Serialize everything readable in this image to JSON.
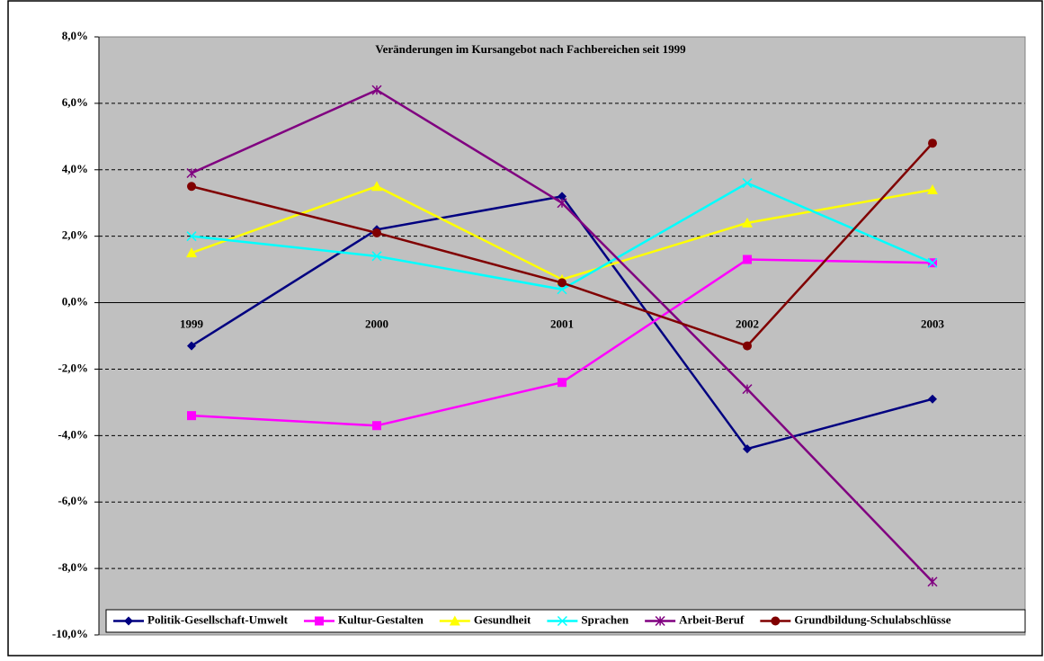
{
  "chart_data": {
    "type": "line",
    "title": "Veränderungen im Kursangebot nach Fachbereichen seit 1999",
    "categories": [
      "1999",
      "2000",
      "2001",
      "2002",
      "2003"
    ],
    "series": [
      {
        "name": "Politik-Gesellschaft-Umwelt",
        "color": "#000080",
        "marker": "diamond",
        "values": [
          -1.3,
          2.2,
          3.2,
          -4.4,
          -2.9
        ]
      },
      {
        "name": "Kultur-Gestalten",
        "color": "#ff00ff",
        "marker": "square",
        "values": [
          -3.4,
          -3.7,
          -2.4,
          1.3,
          1.2
        ]
      },
      {
        "name": "Gesundheit",
        "color": "#ffff00",
        "marker": "triangle",
        "values": [
          1.5,
          3.5,
          0.7,
          2.4,
          3.4
        ]
      },
      {
        "name": "Sprachen",
        "color": "#00ffff",
        "marker": "x",
        "values": [
          2.0,
          1.4,
          0.4,
          3.6,
          1.2
        ]
      },
      {
        "name": "Arbeit-Beruf",
        "color": "#800080",
        "marker": "star",
        "values": [
          3.9,
          6.4,
          3.0,
          -2.6,
          -8.4
        ]
      },
      {
        "name": "Grundbildung-Schulabschlüsse",
        "color": "#800000",
        "marker": "circle",
        "values": [
          3.5,
          2.1,
          0.6,
          -1.3,
          4.8
        ]
      }
    ],
    "ylim": [
      -10,
      8
    ],
    "yticks": [
      {
        "value": -10,
        "label": "-10,0%"
      },
      {
        "value": -8,
        "label": "-8,0%"
      },
      {
        "value": -6,
        "label": "-6,0%"
      },
      {
        "value": -4,
        "label": "-4,0%"
      },
      {
        "value": -2,
        "label": "-2,0%"
      },
      {
        "value": 0,
        "label": "0,0%"
      },
      {
        "value": 2,
        "label": "2,0%"
      },
      {
        "value": 4,
        "label": "4,0%"
      },
      {
        "value": 6,
        "label": "6,0%"
      },
      {
        "value": 8,
        "label": "8,0%"
      }
    ],
    "grid": true,
    "plot_background": "#c0c0c0",
    "legend": "bottom"
  }
}
